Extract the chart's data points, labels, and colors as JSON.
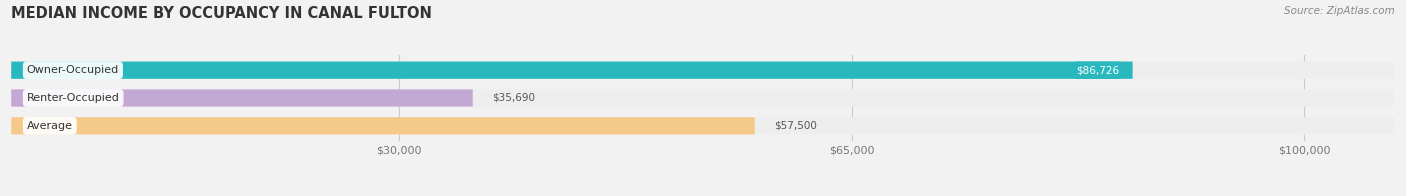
{
  "title": "MEDIAN INCOME BY OCCUPANCY IN CANAL FULTON",
  "source": "Source: ZipAtlas.com",
  "categories": [
    "Owner-Occupied",
    "Renter-Occupied",
    "Average"
  ],
  "values": [
    86726,
    35690,
    57500
  ],
  "bar_colors": [
    "#29b8be",
    "#c4a8d4",
    "#f5c98a"
  ],
  "bar_bg_colors": [
    "#eeeeee",
    "#eeeeee",
    "#eeeeee"
  ],
  "value_label_colors": [
    "#29b8be",
    "#555555",
    "#555555"
  ],
  "value_label_bg": [
    "#29b8be",
    "none",
    "none"
  ],
  "value_label_text_colors": [
    "#ffffff",
    "#555555",
    "#555555"
  ],
  "labels": [
    "$86,726",
    "$35,690",
    "$57,500"
  ],
  "tick_labels": [
    "$30,000",
    "$65,000",
    "$100,000"
  ],
  "tick_values": [
    30000,
    65000,
    100000
  ],
  "xlim_min": 0,
  "xlim_max": 107000,
  "bar_height": 0.62,
  "figsize": [
    14.06,
    1.96
  ],
  "dpi": 100,
  "bg_color": "#f2f2f2",
  "bar_sep_color": "#ffffff"
}
